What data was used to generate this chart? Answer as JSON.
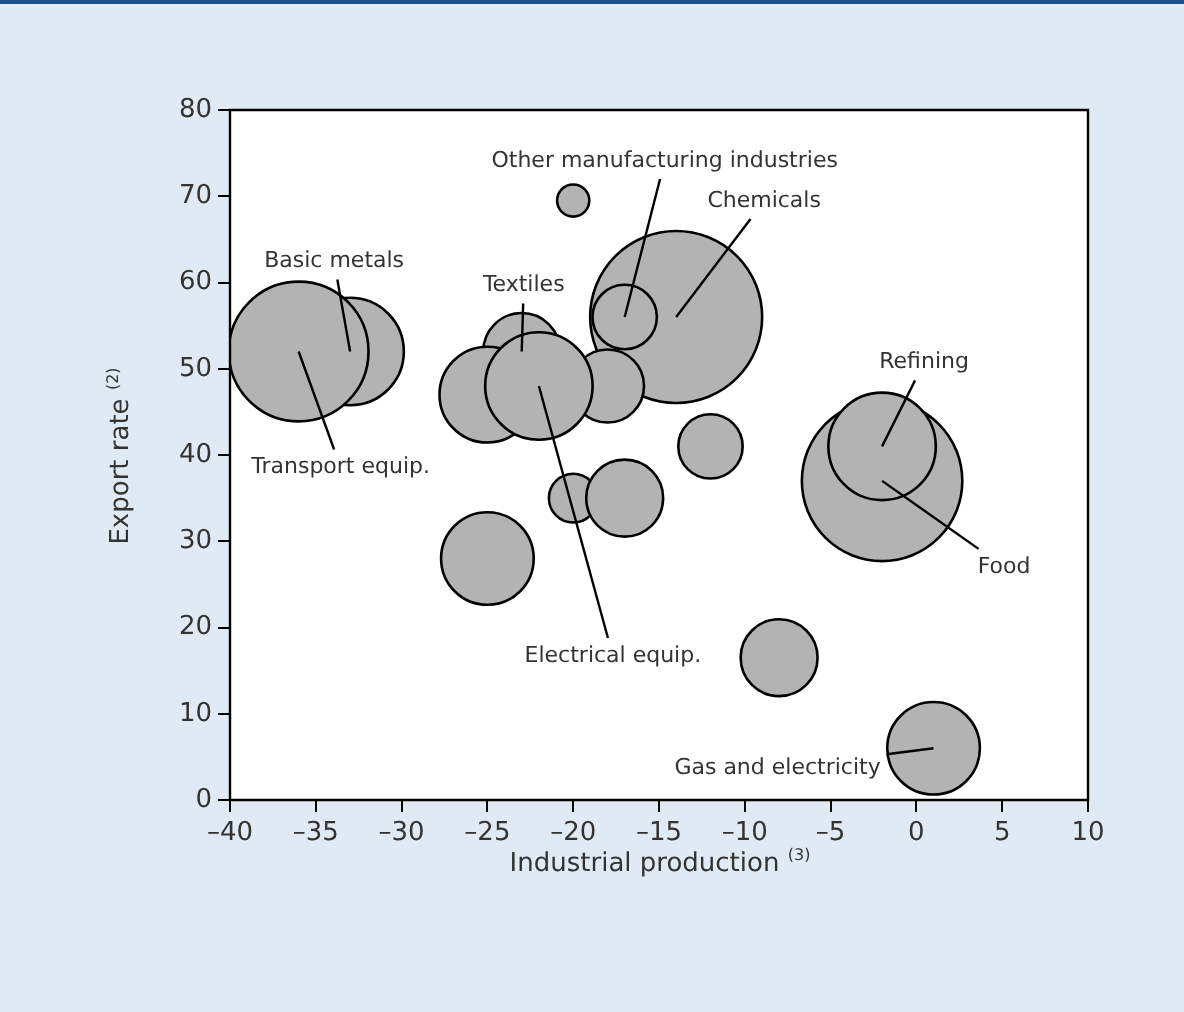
{
  "chart_data": {
    "type": "bubble",
    "xlabel": "Industrial production $^{(3)}$",
    "ylabel": "Export rate $^{(2)}$",
    "xlim": [
      -40,
      10
    ],
    "xticks": [
      {
        "value": -40,
        "label": "–40"
      },
      {
        "value": -35,
        "label": "–35"
      },
      {
        "value": -30,
        "label": "–30"
      },
      {
        "value": -25,
        "label": "–25"
      },
      {
        "value": -20,
        "label": "–20"
      },
      {
        "value": -15,
        "label": "–15"
      },
      {
        "value": -10,
        "label": "–10"
      },
      {
        "value": -5,
        "label": "–5"
      },
      0,
      5,
      10
    ],
    "ylim": [
      0,
      80
    ],
    "yticks": [
      0,
      10,
      20,
      30,
      40,
      50,
      60,
      70,
      80
    ],
    "grid": false,
    "legend": false,
    "series": [
      {
        "color": "#b3b3b3",
        "x": [
          -33,
          -36,
          -23,
          -25,
          -14,
          -18,
          -22,
          -17,
          -20,
          -20,
          -17,
          -12,
          -2,
          -2,
          -25,
          -8,
          1
        ],
        "values": [
          52,
          52,
          52,
          47,
          56,
          48,
          48,
          56,
          69.5,
          35,
          35,
          41,
          37,
          41,
          28,
          16.5,
          6
        ],
        "sizes": [
          0.39,
          0.66,
          0.2,
          0.31,
          1,
          0.18,
          0.39,
          0.14,
          0.035,
          0.08,
          0.2,
          0.14,
          0.87,
          0.39,
          0.29,
          0.2,
          0.29
        ]
      }
    ],
    "annotations": [
      {
        "text": "Basic metals",
        "x": -33,
        "y": 52
      },
      {
        "text": "Transport equip.",
        "x": -36,
        "y": 52
      },
      {
        "text": "Textiles",
        "x": -23,
        "y": 52
      },
      {
        "text": "Other manufacturing industries",
        "x": -17,
        "y": 56
      },
      {
        "text": "Chemicals",
        "x": -14,
        "y": 56
      },
      {
        "text": "Refining",
        "x": -2,
        "y": 41
      },
      {
        "text": "Food",
        "x": -2,
        "y": 37
      },
      {
        "text": "Electrical equip.",
        "x": -22,
        "y": 48
      },
      {
        "text": "Gas and electricity",
        "x": 1,
        "y": 6
      }
    ]
  }
}
